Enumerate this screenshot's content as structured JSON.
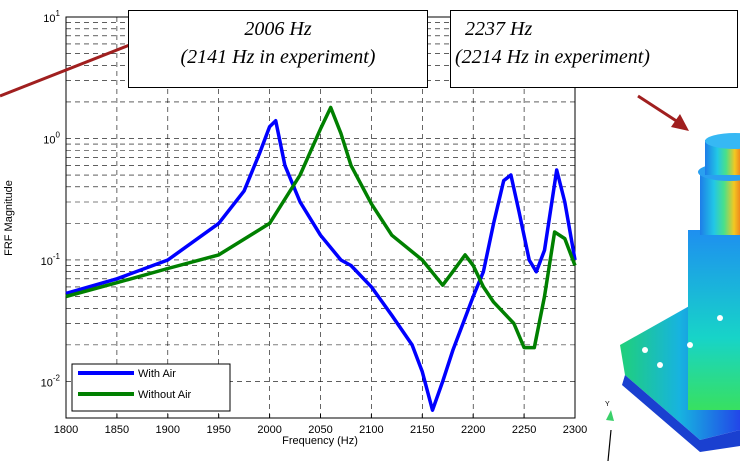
{
  "colors": {
    "accent_arrow": "#a01f1f",
    "model_blue": "#1f5fe0"
  },
  "callouts": [
    {
      "line1": "2006 Hz",
      "line2": "(2141 Hz in experiment)"
    },
    {
      "line1": "2237 Hz",
      "line2": "(2214 Hz in experiment)"
    }
  ],
  "model_axis_label": "Y",
  "chart_data": {
    "type": "line",
    "xlabel": "Frequency (Hz)",
    "ylabel": "FRF Magnitude",
    "xlim": [
      1800,
      2300
    ],
    "ylim": [
      0.005,
      10
    ],
    "yscale": "log",
    "grid": true,
    "legend_position": "bottom-left",
    "x_ticks": [
      1800,
      1850,
      1900,
      1950,
      2000,
      2050,
      2100,
      2150,
      2200,
      2250,
      2300
    ],
    "y_ticks": [
      {
        "base": "10",
        "exp": "1",
        "value": 10
      },
      {
        "base": "10",
        "exp": "0",
        "value": 1
      },
      {
        "base": "10",
        "exp": "-1",
        "value": 0.1
      },
      {
        "base": "10",
        "exp": "-2",
        "value": 0.01
      }
    ],
    "series": [
      {
        "name": "With Air",
        "color": "#0000ff",
        "x": [
          1800,
          1850,
          1900,
          1950,
          1975,
          1990,
          2000,
          2006,
          2015,
          2030,
          2050,
          2070,
          2080,
          2100,
          2120,
          2140,
          2150,
          2160,
          2170,
          2180,
          2190,
          2200,
          2210,
          2220,
          2230,
          2237,
          2245,
          2255,
          2262,
          2270,
          2282,
          2290,
          2300
        ],
        "y": [
          0.053,
          0.07,
          0.1,
          0.2,
          0.37,
          0.75,
          1.25,
          1.4,
          0.6,
          0.3,
          0.16,
          0.1,
          0.09,
          0.06,
          0.035,
          0.02,
          0.012,
          0.0058,
          0.01,
          0.018,
          0.03,
          0.05,
          0.08,
          0.2,
          0.45,
          0.5,
          0.25,
          0.1,
          0.08,
          0.12,
          0.55,
          0.3,
          0.1
        ]
      },
      {
        "name": "Without Air",
        "color": "#008000",
        "x": [
          1800,
          1850,
          1900,
          1950,
          2000,
          2030,
          2050,
          2060,
          2070,
          2080,
          2100,
          2120,
          2150,
          2170,
          2180,
          2192,
          2200,
          2210,
          2220,
          2240,
          2250,
          2260,
          2270,
          2280,
          2290,
          2300
        ],
        "y": [
          0.05,
          0.065,
          0.085,
          0.11,
          0.2,
          0.5,
          1.2,
          1.8,
          1.1,
          0.6,
          0.29,
          0.16,
          0.1,
          0.062,
          0.08,
          0.11,
          0.09,
          0.06,
          0.045,
          0.03,
          0.019,
          0.019,
          0.05,
          0.17,
          0.15,
          0.09
        ]
      }
    ]
  }
}
